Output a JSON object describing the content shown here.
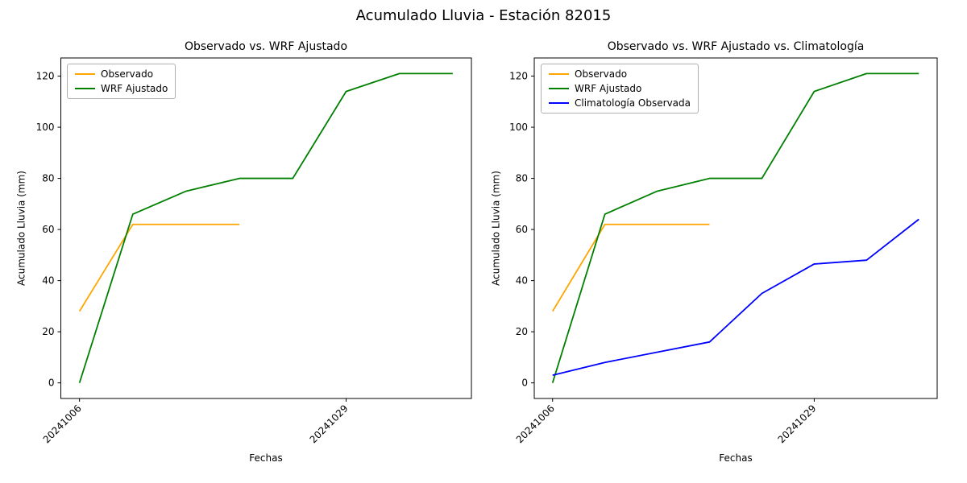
{
  "figure": {
    "title": "Acumulado Lluvia - Estación 82015",
    "background": "#ffffff"
  },
  "colors": {
    "observado": "#FFA500",
    "wrf_ajustado": "#008000",
    "climatologia": "#0000FF",
    "axes": "#000000"
  },
  "chart_data": [
    {
      "type": "line",
      "title": "Observado vs. WRF Ajustado",
      "xlabel": "Fechas",
      "ylabel": "Acumulado Lluvia (mm)",
      "ylim": [
        -6.1,
        127.1
      ],
      "xlim": [
        -0.35,
        7.35
      ],
      "yticks": [
        0,
        20,
        40,
        60,
        80,
        100,
        120
      ],
      "xticks": [
        {
          "position": 0,
          "label": "20241006"
        },
        {
          "position": 5,
          "label": "20241029"
        }
      ],
      "grid": false,
      "legend_position": "upper left",
      "series": [
        {
          "name": "Observado",
          "color": "#FFA500",
          "x": [
            0,
            1,
            2,
            3
          ],
          "y": [
            28,
            62,
            62,
            62
          ]
        },
        {
          "name": "WRF Ajustado",
          "color": "#008000",
          "x": [
            0,
            1,
            2,
            3,
            4,
            5,
            6,
            7
          ],
          "y": [
            0,
            66,
            75,
            80,
            80,
            114,
            121,
            121
          ]
        }
      ]
    },
    {
      "type": "line",
      "title": "Observado vs. WRF Ajustado vs. Climatología",
      "xlabel": "Fechas",
      "ylabel": "Acumulado Lluvia (mm)",
      "ylim": [
        -6.1,
        127.1
      ],
      "xlim": [
        -0.35,
        7.35
      ],
      "yticks": [
        0,
        20,
        40,
        60,
        80,
        100,
        120
      ],
      "xticks": [
        {
          "position": 0,
          "label": "20241006"
        },
        {
          "position": 5,
          "label": "20241029"
        }
      ],
      "grid": false,
      "legend_position": "upper left",
      "series": [
        {
          "name": "Observado",
          "color": "#FFA500",
          "x": [
            0,
            1,
            2,
            3
          ],
          "y": [
            28,
            62,
            62,
            62
          ]
        },
        {
          "name": "WRF Ajustado",
          "color": "#008000",
          "x": [
            0,
            1,
            2,
            3,
            4,
            5,
            6,
            7
          ],
          "y": [
            0,
            66,
            75,
            80,
            80,
            114,
            121,
            121
          ]
        },
        {
          "name": "Climatología Observada",
          "color": "#0000FF",
          "x": [
            0,
            1,
            2,
            3,
            4,
            5,
            6,
            7
          ],
          "y": [
            3,
            8,
            12,
            16,
            35,
            46.5,
            48,
            64
          ]
        }
      ]
    }
  ]
}
